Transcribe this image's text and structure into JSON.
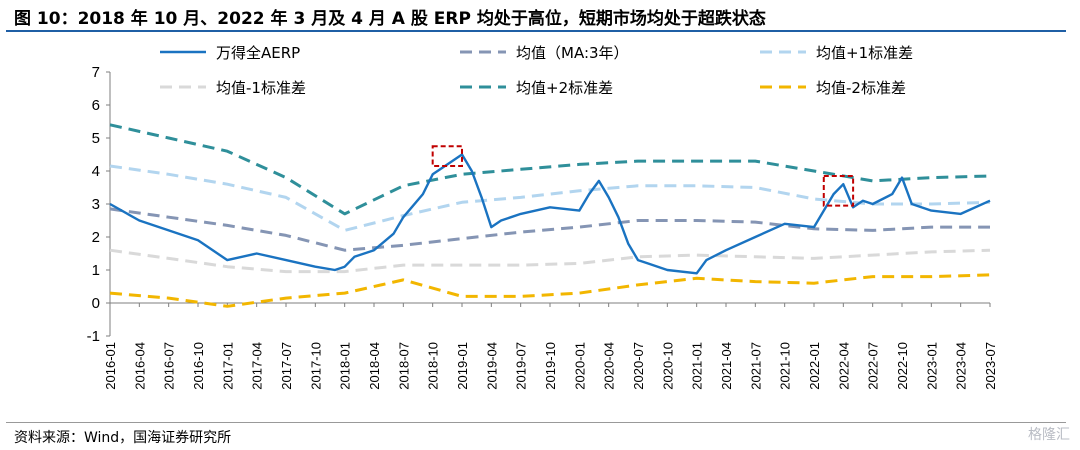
{
  "figure": {
    "title": "图 10：2018 年 10 月、2022 年 3 月及 4 月 A 股 ERP 均处于高位，短期市场均处于超跌状态",
    "source": "资料来源：Wind，国海证券研究所",
    "watermark": "格隆汇"
  },
  "chart_data": {
    "type": "line",
    "title": "",
    "xlabel": "",
    "ylabel": "",
    "ylim": [
      -1,
      7
    ],
    "yticks": [
      "-1",
      "0",
      "1",
      "2",
      "3",
      "4",
      "5",
      "6",
      "7"
    ],
    "grid": false,
    "legend_position": "top",
    "x_tick_labels": [
      "2016-01",
      "2016-04",
      "2016-07",
      "2016-10",
      "2017-01",
      "2017-04",
      "2017-07",
      "2017-10",
      "2018-01",
      "2018-04",
      "2018-07",
      "2018-10",
      "2019-01",
      "2019-04",
      "2019-07",
      "2019-10",
      "2020-01",
      "2020-04",
      "2020-07",
      "2020-10",
      "2021-01",
      "2021-04",
      "2021-07",
      "2021-10",
      "2022-01",
      "2022-04",
      "2022-07",
      "2022-10",
      "2023-01",
      "2023-04",
      "2023-07"
    ],
    "series": [
      {
        "name": "万得全AERP",
        "color": "#1a73c1",
        "style": "solid",
        "x": [
          "2016-01",
          "2016-04",
          "2016-07",
          "2016-10",
          "2017-01",
          "2017-04",
          "2017-07",
          "2017-10",
          "2017-12",
          "2018-01",
          "2018-02",
          "2018-04",
          "2018-06",
          "2018-07",
          "2018-09",
          "2018-10",
          "2018-11",
          "2018-12",
          "2019-01",
          "2019-02",
          "2019-03",
          "2019-04",
          "2019-05",
          "2019-07",
          "2019-10",
          "2020-01",
          "2020-02",
          "2020-03",
          "2020-04",
          "2020-05",
          "2020-06",
          "2020-07",
          "2020-08",
          "2020-10",
          "2021-01",
          "2021-02",
          "2021-04",
          "2021-07",
          "2021-10",
          "2022-01",
          "2022-02",
          "2022-03",
          "2022-04",
          "2022-05",
          "2022-06",
          "2022-07",
          "2022-09",
          "2022-10",
          "2022-11",
          "2023-01",
          "2023-04",
          "2023-07"
        ],
        "y": [
          3.0,
          2.5,
          2.2,
          1.9,
          1.3,
          1.5,
          1.3,
          1.1,
          1.0,
          1.1,
          1.4,
          1.6,
          2.1,
          2.6,
          3.3,
          3.9,
          4.1,
          4.3,
          4.5,
          4.0,
          3.2,
          2.3,
          2.5,
          2.7,
          2.9,
          2.8,
          3.3,
          3.7,
          3.2,
          2.6,
          1.8,
          1.3,
          1.2,
          1.0,
          0.9,
          1.3,
          1.6,
          2.0,
          2.4,
          2.3,
          2.8,
          3.3,
          3.6,
          2.9,
          3.1,
          3.0,
          3.3,
          3.8,
          3.0,
          2.8,
          2.7,
          3.1
        ]
      },
      {
        "name": "均值（MA:3年）",
        "color": "#8595b4",
        "style": "dashed",
        "x": [
          "2016-01",
          "2016-07",
          "2017-01",
          "2017-07",
          "2018-01",
          "2018-07",
          "2019-01",
          "2019-07",
          "2020-01",
          "2020-07",
          "2021-01",
          "2021-07",
          "2022-01",
          "2022-07",
          "2023-01",
          "2023-07"
        ],
        "y": [
          2.85,
          2.6,
          2.35,
          2.05,
          1.6,
          1.75,
          1.95,
          2.15,
          2.3,
          2.5,
          2.5,
          2.45,
          2.25,
          2.2,
          2.3,
          2.3
        ]
      },
      {
        "name": "均值+1标准差",
        "color": "#b2d5ef",
        "style": "dashed",
        "x": [
          "2016-01",
          "2016-07",
          "2017-01",
          "2017-07",
          "2018-01",
          "2018-07",
          "2019-01",
          "2019-07",
          "2020-01",
          "2020-07",
          "2021-01",
          "2021-07",
          "2022-01",
          "2022-07",
          "2023-01",
          "2023-07"
        ],
        "y": [
          4.15,
          3.9,
          3.6,
          3.2,
          2.2,
          2.65,
          3.05,
          3.2,
          3.4,
          3.55,
          3.55,
          3.5,
          3.15,
          3.0,
          3.0,
          3.05
        ]
      },
      {
        "name": "均值-1标准差",
        "color": "#d9d9d9",
        "style": "dashed",
        "x": [
          "2016-01",
          "2016-07",
          "2017-01",
          "2017-07",
          "2018-01",
          "2018-07",
          "2019-01",
          "2019-07",
          "2020-01",
          "2020-07",
          "2021-01",
          "2021-07",
          "2022-01",
          "2022-07",
          "2023-01",
          "2023-07"
        ],
        "y": [
          1.6,
          1.35,
          1.1,
          0.95,
          0.95,
          1.15,
          1.15,
          1.15,
          1.2,
          1.4,
          1.45,
          1.4,
          1.35,
          1.45,
          1.55,
          1.6
        ]
      },
      {
        "name": "均值+2标准差",
        "color": "#2f8f9a",
        "style": "dashed",
        "x": [
          "2016-01",
          "2016-07",
          "2017-01",
          "2017-07",
          "2018-01",
          "2018-07",
          "2019-01",
          "2019-07",
          "2020-01",
          "2020-07",
          "2021-01",
          "2021-07",
          "2022-01",
          "2022-07",
          "2023-01",
          "2023-07"
        ],
        "y": [
          5.4,
          5.0,
          4.6,
          3.8,
          2.7,
          3.55,
          3.9,
          4.05,
          4.2,
          4.3,
          4.3,
          4.3,
          4.0,
          3.7,
          3.8,
          3.85
        ]
      },
      {
        "name": "均值-2标准差",
        "color": "#f2b600",
        "style": "dashed",
        "x": [
          "2016-01",
          "2016-07",
          "2017-01",
          "2017-07",
          "2018-01",
          "2018-07",
          "2019-01",
          "2019-07",
          "2020-01",
          "2020-07",
          "2021-01",
          "2021-07",
          "2022-01",
          "2022-07",
          "2023-01",
          "2023-07"
        ],
        "y": [
          0.3,
          0.15,
          -0.1,
          0.15,
          0.3,
          0.7,
          0.2,
          0.2,
          0.3,
          0.55,
          0.75,
          0.65,
          0.6,
          0.8,
          0.8,
          0.85
        ]
      }
    ],
    "annotations": [
      {
        "type": "dashed-box",
        "color": "#c00000",
        "x_range": [
          "2018-10",
          "2019-01"
        ],
        "y_range": [
          4.15,
          4.75
        ]
      },
      {
        "type": "dashed-box",
        "color": "#c00000",
        "x_range": [
          "2022-02",
          "2022-05"
        ],
        "y_range": [
          2.95,
          3.85
        ]
      }
    ]
  }
}
